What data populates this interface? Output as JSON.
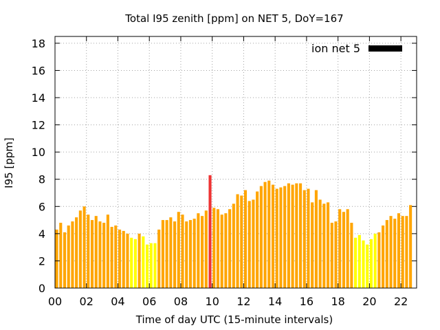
{
  "chart_data": {
    "type": "bar",
    "title": "Total I95 zenith [ppm] on NET 5, DoY=167",
    "xlabel": "Time of day UTC (15-minute intervals)",
    "ylabel": "I95 [ppm]",
    "xlim": [
      0,
      23
    ],
    "ylim": [
      0,
      18.5
    ],
    "x_ticks": [
      "00",
      "02",
      "04",
      "06",
      "08",
      "10",
      "12",
      "14",
      "16",
      "18",
      "20",
      "22"
    ],
    "y_ticks": [
      "0",
      "2",
      "4",
      "6",
      "8",
      "10",
      "12",
      "14",
      "16",
      "18"
    ],
    "grid": true,
    "legend": {
      "position": "top-right",
      "entries": [
        {
          "name": "ion net 5",
          "color": "#000000"
        }
      ]
    },
    "colors": {
      "yellow": "#ffff00",
      "orange": "#ffa500",
      "red": "#ee3333"
    },
    "interval_hours": 0.25,
    "values": [
      4.3,
      4.8,
      4.1,
      4.6,
      4.9,
      5.2,
      5.7,
      6.0,
      5.4,
      5.0,
      5.3,
      4.9,
      4.8,
      5.4,
      4.5,
      4.6,
      4.3,
      4.2,
      4.0,
      3.7,
      3.6,
      4.0,
      3.8,
      3.2,
      3.3,
      3.3,
      4.3,
      5.0,
      5.0,
      5.2,
      4.9,
      5.6,
      5.4,
      4.9,
      5.0,
      5.1,
      5.5,
      5.3,
      5.7,
      8.3,
      5.9,
      5.8,
      5.4,
      5.5,
      5.8,
      6.2,
      6.9,
      6.8,
      7.2,
      6.4,
      6.5,
      7.1,
      7.5,
      7.8,
      7.9,
      7.6,
      7.3,
      7.4,
      7.5,
      7.7,
      7.6,
      7.7,
      7.7,
      7.2,
      7.3,
      6.3,
      7.2,
      6.5,
      6.2,
      6.3,
      4.8,
      4.9,
      5.8,
      5.6,
      5.8,
      4.8,
      3.7,
      3.9,
      3.5,
      3.2,
      3.6,
      4.0,
      4.1,
      4.6,
      5.0,
      5.3,
      5.1,
      5.5,
      5.3,
      5.3,
      6.1
    ],
    "bar_levels": [
      "o",
      "o",
      "o",
      "o",
      "o",
      "o",
      "o",
      "o",
      "o",
      "o",
      "o",
      "o",
      "o",
      "o",
      "o",
      "o",
      "o",
      "o",
      "o",
      "y",
      "y",
      "o",
      "y",
      "y",
      "y",
      "y",
      "o",
      "o",
      "o",
      "o",
      "o",
      "o",
      "o",
      "o",
      "o",
      "o",
      "o",
      "o",
      "o",
      "r",
      "o",
      "o",
      "o",
      "o",
      "o",
      "o",
      "o",
      "o",
      "o",
      "o",
      "o",
      "o",
      "o",
      "o",
      "o",
      "o",
      "o",
      "o",
      "o",
      "o",
      "o",
      "o",
      "o",
      "o",
      "o",
      "o",
      "o",
      "o",
      "o",
      "o",
      "o",
      "o",
      "o",
      "o",
      "o",
      "o",
      "y",
      "y",
      "y",
      "y",
      "y",
      "y",
      "o",
      "o",
      "o",
      "o",
      "o",
      "o",
      "o",
      "o",
      "o"
    ]
  }
}
